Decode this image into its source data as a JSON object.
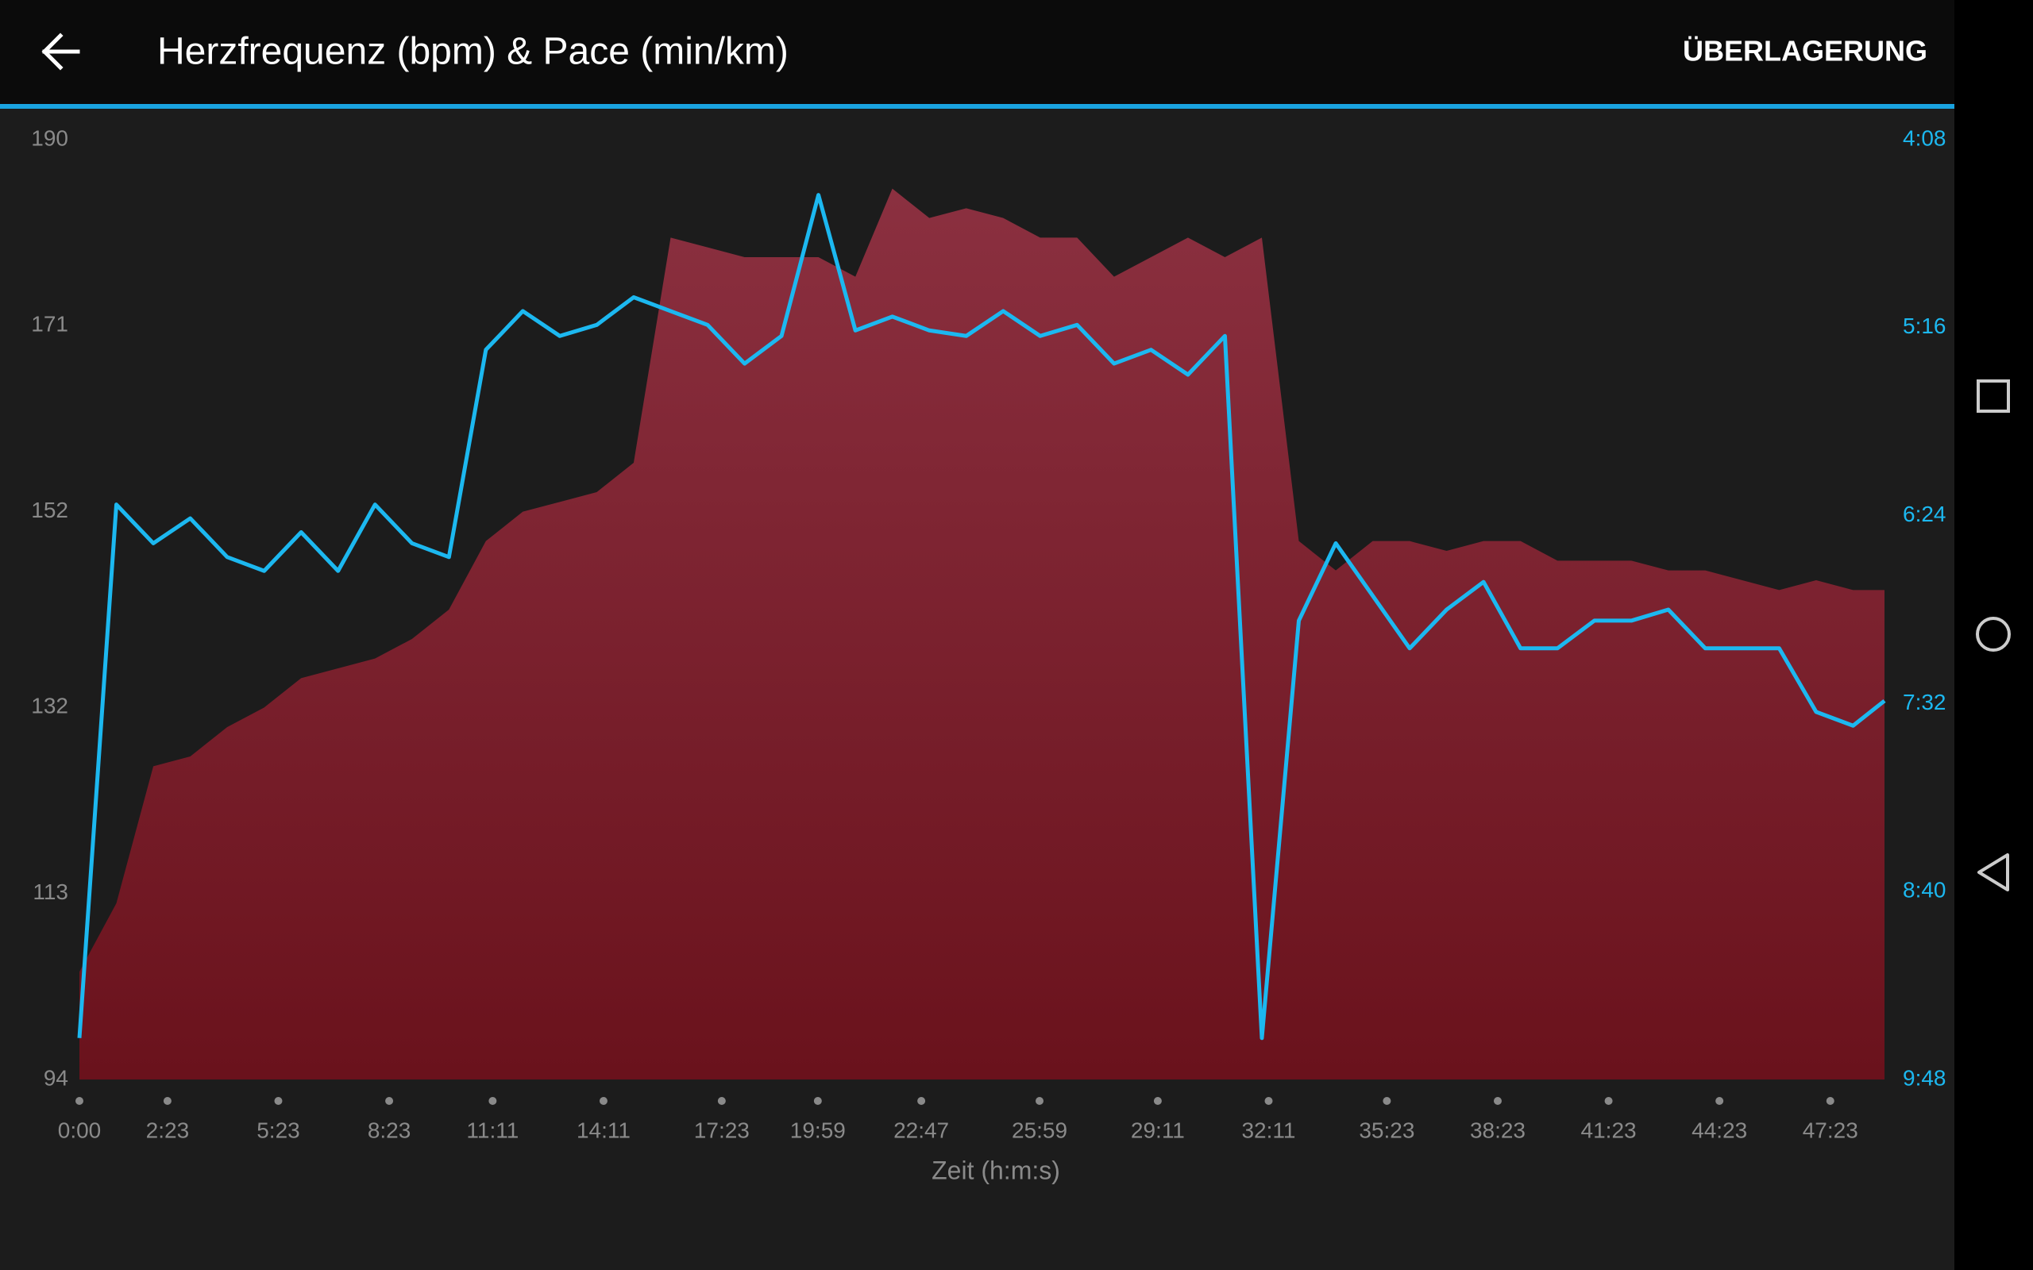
{
  "header": {
    "title": "Herzfrequenz (bpm) & Pace (min/km)",
    "action": "ÜBERLAGERUNG"
  },
  "chart_data": {
    "type": "combo",
    "xlabel": "Zeit (h:m:s)",
    "x": [
      0,
      60,
      120,
      180,
      240,
      300,
      360,
      420,
      480,
      540,
      600,
      660,
      720,
      780,
      840,
      900,
      960,
      1020,
      1080,
      1140,
      1200,
      1260,
      1320,
      1380,
      1440,
      1500,
      1560,
      1620,
      1680,
      1740,
      1800,
      1860,
      1920,
      1980,
      2040,
      2100,
      2160,
      2220,
      2280,
      2340,
      2400,
      2460,
      2520,
      2580,
      2640,
      2700,
      2760,
      2820,
      2880,
      2931
    ],
    "xlim": [
      0,
      2931
    ],
    "xticks": [
      {
        "value": 0,
        "label": "0:00"
      },
      {
        "value": 143,
        "label": "2:23"
      },
      {
        "value": 323,
        "label": "5:23"
      },
      {
        "value": 503,
        "label": "8:23"
      },
      {
        "value": 671,
        "label": "11:11"
      },
      {
        "value": 851,
        "label": "14:11"
      },
      {
        "value": 1043,
        "label": "17:23"
      },
      {
        "value": 1199,
        "label": "19:59"
      },
      {
        "value": 1367,
        "label": "22:47"
      },
      {
        "value": 1559,
        "label": "25:59"
      },
      {
        "value": 1751,
        "label": "29:11"
      },
      {
        "value": 1931,
        "label": "32:11"
      },
      {
        "value": 2123,
        "label": "35:23"
      },
      {
        "value": 2303,
        "label": "38:23"
      },
      {
        "value": 2483,
        "label": "41:23"
      },
      {
        "value": 2663,
        "label": "44:23"
      },
      {
        "value": 2843,
        "label": "47:23"
      }
    ],
    "ylim": [
      94,
      190
    ],
    "yticks": [
      94,
      113,
      132,
      152,
      171,
      190
    ],
    "y2lim": [
      588,
      248
    ],
    "y2ticks": [
      {
        "value": 588,
        "label": "9:48"
      },
      {
        "value": 520,
        "label": "8:40"
      },
      {
        "value": 452,
        "label": "7:32"
      },
      {
        "value": 384,
        "label": "6:24"
      },
      {
        "value": 316,
        "label": "5:16"
      },
      {
        "value": 248,
        "label": "4:08"
      }
    ],
    "series": [
      {
        "type": "area",
        "color": "#8b3040",
        "values": [
          105,
          112,
          126,
          127,
          130,
          132,
          135,
          136,
          137,
          139,
          142,
          149,
          152,
          153,
          154,
          157,
          180,
          179,
          178,
          178,
          178,
          176,
          185,
          182,
          183,
          182,
          180,
          180,
          176,
          178,
          180,
          178,
          180,
          149,
          146,
          149,
          149,
          148,
          149,
          149,
          147,
          147,
          147,
          146,
          146,
          145,
          144,
          145,
          144,
          144
        ]
      },
      {
        "type": "line",
        "axis": "y2",
        "color": "#1cb8f0",
        "values": [
          573,
          380,
          394,
          385,
          399,
          404,
          390,
          404,
          380,
          394,
          399,
          324,
          310,
          319,
          315,
          305,
          310,
          315,
          329,
          319,
          268,
          317,
          312,
          317,
          319,
          310,
          319,
          315,
          329,
          324,
          333,
          319,
          573,
          422,
          394,
          413,
          432,
          418,
          408,
          432,
          432,
          422,
          422,
          418,
          432,
          432,
          432,
          455,
          460,
          451
        ]
      }
    ]
  }
}
